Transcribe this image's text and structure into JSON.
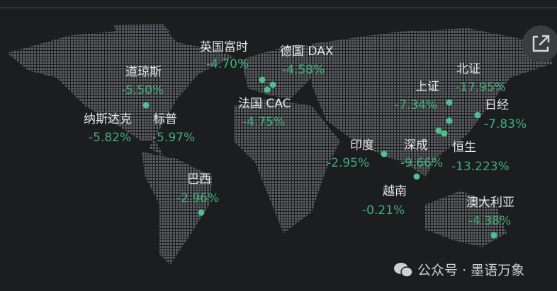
{
  "accent_color": "#3fae7a",
  "markets": [
    {
      "name": "英国富时",
      "change": "-4.70%"
    },
    {
      "name": "德国 DAX",
      "change": "-4.58%"
    },
    {
      "name": "道琼斯",
      "change": "-5.50%"
    },
    {
      "name": "纳斯达克",
      "change": "-5.82%"
    },
    {
      "name": "标普",
      "change": "-5.97%"
    },
    {
      "name": "法国 CAC",
      "change": "-4.75%"
    },
    {
      "name": "巴西",
      "change": "-2.96%"
    },
    {
      "name": "印度",
      "change": "-2.95%"
    },
    {
      "name": "深成",
      "change": "-9.66%"
    },
    {
      "name": "越南",
      "change": "-0.21%"
    },
    {
      "name": "上证",
      "change": "-7.34%"
    },
    {
      "name": "北证",
      "change": "-17.95%"
    },
    {
      "name": "日经",
      "change": "-7.83%"
    },
    {
      "name": "恒生",
      "change": "-13.223%"
    },
    {
      "name": "澳大利亚",
      "change": "-4.38%"
    }
  ],
  "share_icon": "external-link-icon",
  "watermark": {
    "icon": "wechat-icon",
    "text": "公众号 · 墨语万象"
  }
}
